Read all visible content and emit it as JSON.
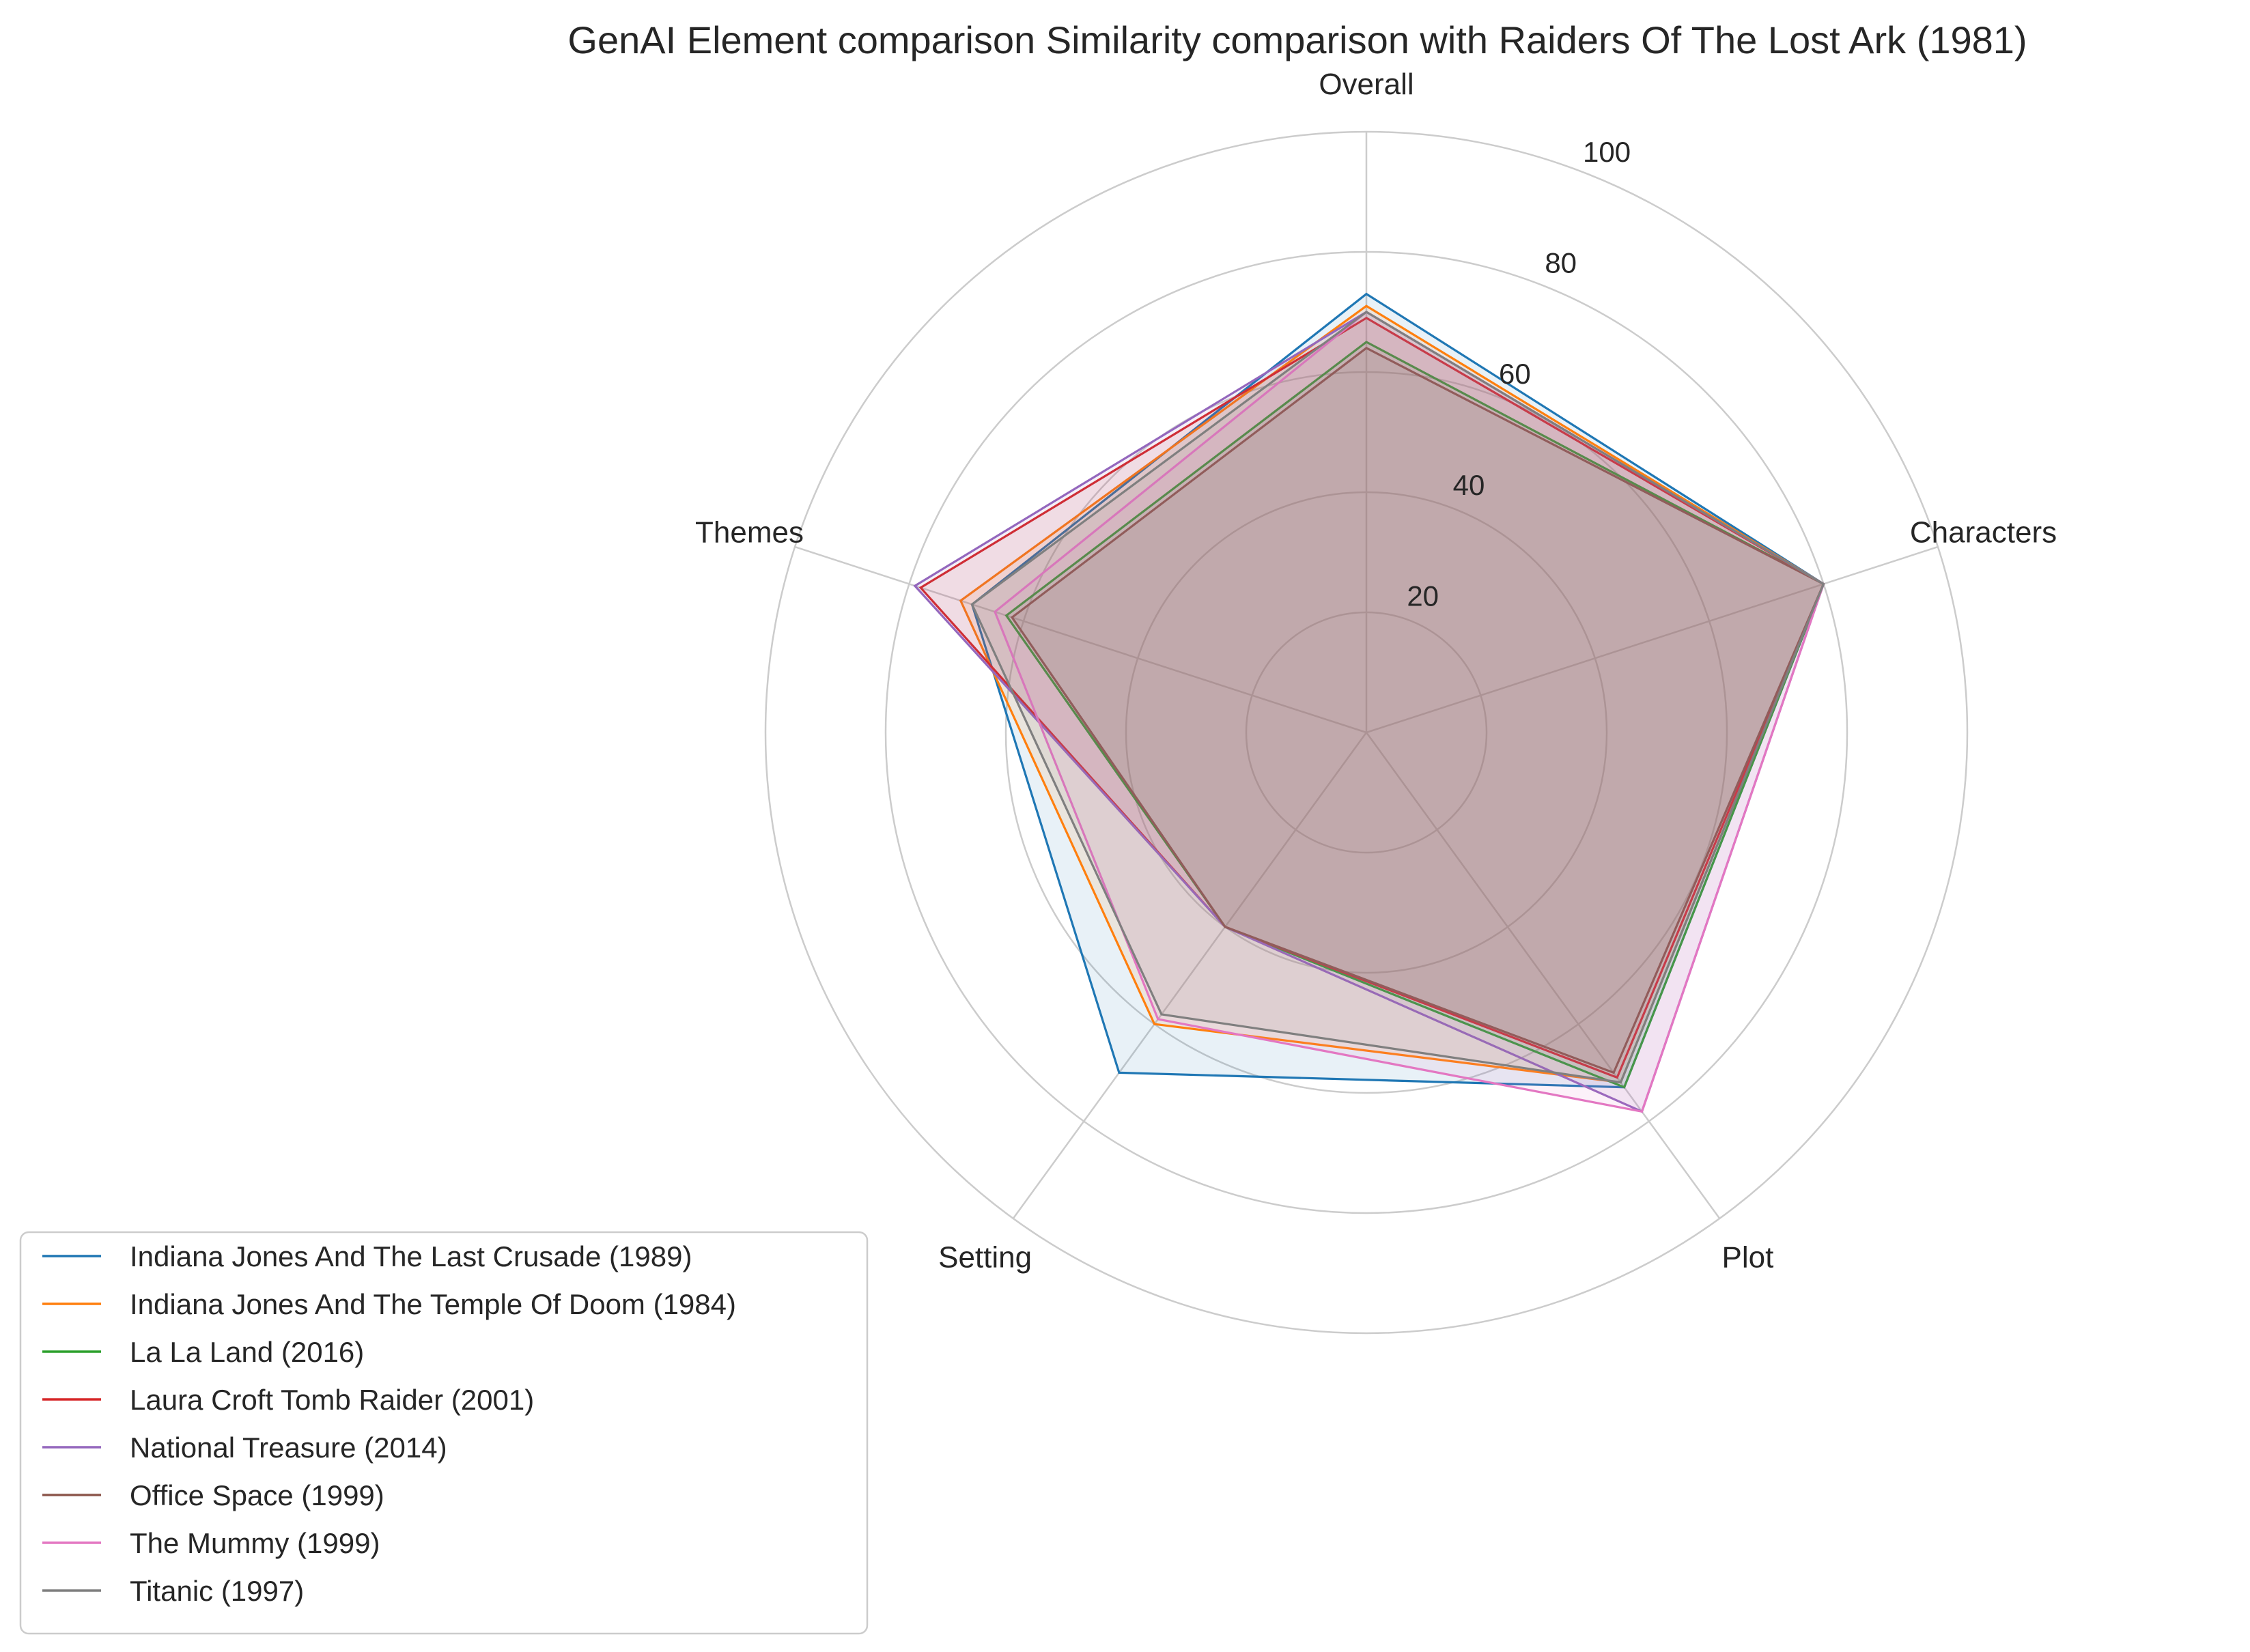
{
  "chart_data": {
    "type": "radar",
    "title": "GenAI Element comparison Similarity comparison with Raiders Of The Lost Ark (1981)",
    "axes": [
      "Overall",
      "Characters",
      "Plot",
      "Setting",
      "Themes"
    ],
    "rlim": [
      0,
      100
    ],
    "rticks": [
      20,
      40,
      60,
      80,
      100
    ],
    "grid": true,
    "legend_position": "lower-left",
    "series": [
      {
        "name": "Indiana Jones And The Last Crusade (1989)",
        "color": "#1f77b4",
        "values": [
          73,
          80,
          73,
          70,
          69
        ]
      },
      {
        "name": "Indiana Jones And The Temple Of Doom (1984)",
        "color": "#ff7f0e",
        "values": [
          71,
          80,
          72,
          60,
          71
        ]
      },
      {
        "name": "La La Land (2016)",
        "color": "#2ca02c",
        "values": [
          65,
          80,
          73,
          40,
          63
        ]
      },
      {
        "name": "Laura Croft Tomb Raider (2001)",
        "color": "#d62728",
        "values": [
          69,
          80,
          71,
          40,
          78
        ]
      },
      {
        "name": "National Treasure (2014)",
        "color": "#9467bd",
        "values": [
          70,
          80,
          78,
          40,
          79
        ]
      },
      {
        "name": "Office Space (1999)",
        "color": "#8c564b",
        "values": [
          64,
          80,
          70,
          40,
          62
        ]
      },
      {
        "name": "The Mummy (1999)",
        "color": "#e377c2",
        "values": [
          70,
          80,
          78,
          59,
          65
        ]
      },
      {
        "name": "Titanic (1997)",
        "color": "#7f7f7f",
        "values": [
          70,
          80,
          72,
          58,
          69
        ]
      }
    ]
  }
}
